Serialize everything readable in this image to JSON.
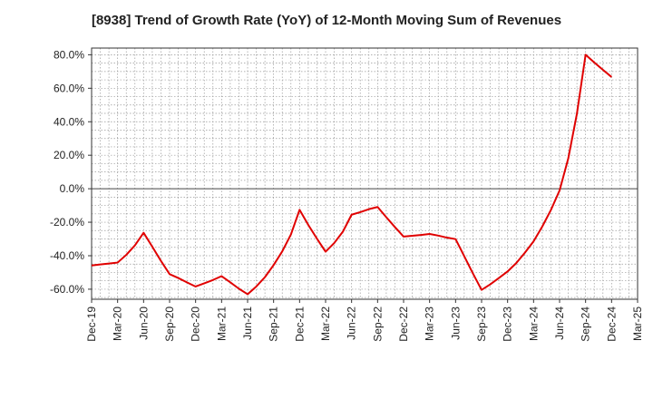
{
  "chart_data": {
    "type": "line",
    "title": "[8938]  Trend of Growth Rate (YoY) of 12-Month Moving Sum of Revenues",
    "xlabel": "",
    "ylabel": "",
    "ylim": [
      -66,
      84
    ],
    "y_ticks": [
      "80.0%",
      "60.0%",
      "40.0%",
      "20.0%",
      "0.0%",
      "-20.0%",
      "-40.0%",
      "-60.0%"
    ],
    "y_tick_values": [
      80,
      60,
      40,
      20,
      0,
      -20,
      -40,
      -60
    ],
    "x_ticks": [
      "Dec-19",
      "Mar-20",
      "Jun-20",
      "Sep-20",
      "Dec-20",
      "Mar-21",
      "Jun-21",
      "Sep-21",
      "Dec-21",
      "Mar-22",
      "Jun-22",
      "Sep-22",
      "Dec-22",
      "Mar-23",
      "Jun-23",
      "Sep-23",
      "Dec-23",
      "Mar-24",
      "Jun-24",
      "Sep-24",
      "Dec-24",
      "Mar-25"
    ],
    "grid": true,
    "line_color": "#e00000",
    "x": [
      "Dec-19",
      "Jan-20",
      "Feb-20",
      "Mar-20",
      "Apr-20",
      "May-20",
      "Jun-20",
      "Jul-20",
      "Aug-20",
      "Sep-20",
      "Oct-20",
      "Nov-20",
      "Dec-20",
      "Jan-21",
      "Feb-21",
      "Mar-21",
      "Apr-21",
      "May-21",
      "Jun-21",
      "Jul-21",
      "Aug-21",
      "Sep-21",
      "Oct-21",
      "Nov-21",
      "Dec-21",
      "Jan-22",
      "Feb-22",
      "Mar-22",
      "Apr-22",
      "May-22",
      "Jun-22",
      "Jul-22",
      "Aug-22",
      "Sep-22",
      "Oct-22",
      "Nov-22",
      "Dec-22",
      "Jan-23",
      "Feb-23",
      "Mar-23",
      "Apr-23",
      "May-23",
      "Jun-23",
      "Jul-23",
      "Aug-23",
      "Sep-23",
      "Oct-23",
      "Nov-23",
      "Dec-23",
      "Jan-24",
      "Feb-24",
      "Mar-24",
      "Apr-24",
      "May-24",
      "Jun-24",
      "Jul-24",
      "Aug-24",
      "Sep-24",
      "Oct-24",
      "Nov-24",
      "Dec-24"
    ],
    "series": [
      {
        "values": [
          -45.8,
          -45.2,
          -44.7,
          -44.1,
          -39.5,
          -33.8,
          -26.3,
          -34.6,
          -43.1,
          -51.0,
          -53.3,
          -55.9,
          -58.4,
          -56.5,
          -54.5,
          -52.2,
          -55.9,
          -59.7,
          -63.0,
          -58.4,
          -52.8,
          -45.6,
          -37.4,
          -27.3,
          -12.6,
          -21.6,
          -29.8,
          -37.6,
          -32.4,
          -25.6,
          -15.5,
          -14.0,
          -12.2,
          -10.9,
          -17.0,
          -22.9,
          -28.6,
          -28.1,
          -27.6,
          -27.0,
          -28.0,
          -29.2,
          -30.1,
          -40.3,
          -50.6,
          -60.4,
          -57.1,
          -53.3,
          -49.4,
          -44.4,
          -38.2,
          -31.4,
          -22.6,
          -12.7,
          -1.0,
          18.1,
          44.8,
          80.0,
          75.4,
          71.0,
          66.7
        ]
      }
    ]
  }
}
